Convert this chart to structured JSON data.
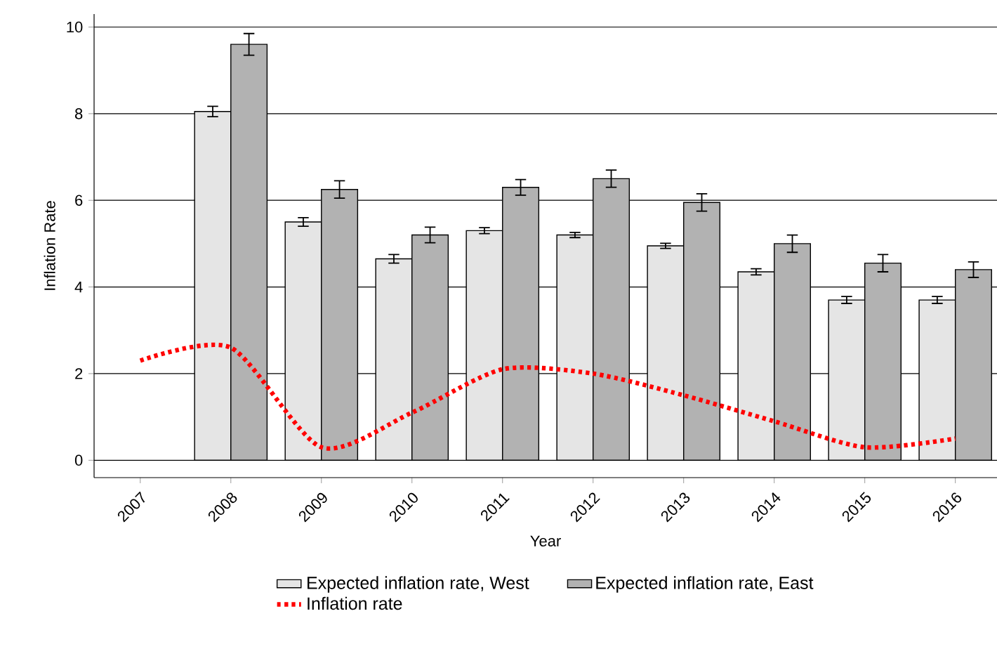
{
  "chart_data": {
    "type": "bar",
    "xlabel": "Year",
    "ylabel": "Inflation Rate",
    "categories": [
      "2007",
      "2008",
      "2009",
      "2010",
      "2011",
      "2012",
      "2013",
      "2014",
      "2015",
      "2016"
    ],
    "series": [
      {
        "name": "Expected inflation rate, West",
        "color": "#e5e5e5",
        "values": [
          null,
          8.05,
          5.5,
          4.65,
          5.3,
          5.2,
          4.95,
          4.35,
          3.7,
          3.7
        ],
        "errors": [
          null,
          0.12,
          0.1,
          0.1,
          0.07,
          0.06,
          0.06,
          0.07,
          0.08,
          0.08
        ]
      },
      {
        "name": "Expected inflation rate, East",
        "color": "#b2b2b2",
        "values": [
          null,
          9.6,
          6.25,
          5.2,
          6.3,
          6.5,
          5.95,
          5.0,
          4.55,
          4.4
        ],
        "errors": [
          null,
          0.25,
          0.2,
          0.18,
          0.18,
          0.2,
          0.2,
          0.2,
          0.2,
          0.18
        ]
      },
      {
        "name": "Inflation rate",
        "type": "line",
        "color": "#ff0000",
        "line_style": "dotted",
        "marker": "none",
        "values": [
          2.3,
          2.6,
          0.3,
          1.1,
          2.1,
          2.0,
          1.5,
          0.9,
          0.3,
          0.5
        ]
      }
    ],
    "ylim": [
      -0.4,
      10.3
    ],
    "yticks": [
      0,
      2,
      4,
      6,
      8,
      10
    ],
    "grid": "y",
    "legend": "bottom"
  }
}
